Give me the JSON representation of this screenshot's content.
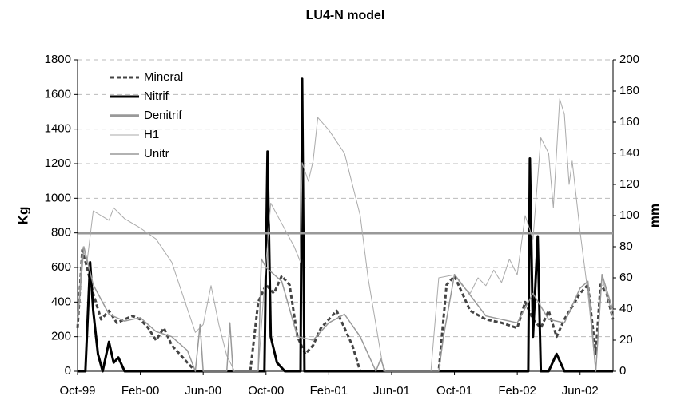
{
  "chart_data": {
    "type": "line",
    "title": "LU4-N model",
    "y_label": "Kg",
    "y2_label": "mm",
    "xlim": [
      0,
      34.1
    ],
    "xticks": [
      {
        "value": 0,
        "label": "Oct-99"
      },
      {
        "value": 4,
        "label": "Feb-00"
      },
      {
        "value": 8,
        "label": "Jun-00"
      },
      {
        "value": 12,
        "label": "Oct-00"
      },
      {
        "value": 16,
        "label": "Feb-01"
      },
      {
        "value": 20,
        "label": "Jun-01"
      },
      {
        "value": 24,
        "label": "Oct-01"
      },
      {
        "value": 28,
        "label": "Feb-02"
      },
      {
        "value": 32,
        "label": "Jun-02"
      }
    ],
    "ylim": [
      0,
      1800
    ],
    "yticks": [
      0,
      200,
      400,
      600,
      800,
      1000,
      1200,
      1400,
      1600,
      1800
    ],
    "y2lim": [
      0,
      200
    ],
    "y2ticks": [
      0,
      20,
      40,
      60,
      80,
      100,
      120,
      140,
      160,
      180,
      200
    ],
    "grid": true,
    "legend": "top-left",
    "series": [
      {
        "name": "Mineral",
        "color": "#444444",
        "dash": "5,3",
        "width": 3,
        "x": [
          0,
          0.3,
          0.6,
          1,
          1.5,
          2,
          2.5,
          3,
          3.5,
          4,
          4.5,
          5,
          5.5,
          6,
          6.5,
          7,
          7.5,
          8,
          11,
          11.5,
          12,
          12.5,
          13,
          13.5,
          14,
          14.5,
          15,
          15.5,
          16,
          16.5,
          17,
          17.5,
          18,
          23,
          23.5,
          24,
          24.5,
          25,
          26,
          27,
          28,
          28.5,
          29,
          29.5,
          30,
          30.5,
          31,
          32,
          32.5,
          33,
          33.3,
          33.7,
          34.1
        ],
        "values": [
          250,
          700,
          600,
          450,
          300,
          350,
          280,
          300,
          320,
          300,
          250,
          180,
          250,
          150,
          100,
          50,
          0,
          0,
          0,
          400,
          500,
          450,
          550,
          500,
          200,
          100,
          150,
          250,
          300,
          350,
          250,
          150,
          0,
          0,
          500,
          550,
          450,
          350,
          300,
          280,
          250,
          400,
          300,
          250,
          350,
          200,
          300,
          450,
          500,
          100,
          500,
          450,
          300
        ]
      },
      {
        "name": "Nitrif",
        "color": "#000000",
        "width": 3,
        "x": [
          0,
          0.5,
          0.8,
          1,
          1.3,
          1.6,
          2,
          2.3,
          2.6,
          3,
          11.9,
          12.1,
          12.3,
          12.7,
          13.2,
          14.2,
          14.3,
          14.45,
          28.7,
          28.8,
          29,
          29.3,
          29.5,
          30,
          30.5,
          31,
          34.1
        ],
        "values": [
          0,
          0,
          630,
          350,
          100,
          0,
          170,
          50,
          80,
          0,
          0,
          1270,
          200,
          50,
          0,
          0,
          1690,
          0,
          0,
          1230,
          200,
          780,
          0,
          0,
          100,
          0,
          0
        ]
      },
      {
        "name": "Denitrif",
        "color": "#999999",
        "width": 3.5,
        "x": [
          0,
          34.1
        ],
        "values": [
          800,
          800
        ]
      },
      {
        "name": "H1",
        "color": "#aaaaaa",
        "width": 1,
        "axis": "y2",
        "x": [
          0,
          0.3,
          0.6,
          1,
          1.5,
          2,
          2.3,
          3,
          4,
          5,
          6,
          7,
          7.5,
          8,
          8.5,
          9,
          9.5,
          10,
          11.5,
          12,
          12.3,
          13,
          13.8,
          14.2,
          14.3,
          14.7,
          15,
          15.3,
          16,
          17,
          18,
          18.5,
          19,
          19.5,
          22.5,
          23,
          24,
          24.5,
          25,
          25.5,
          26,
          26.5,
          27,
          27.5,
          28,
          28.5,
          29,
          29.5,
          30,
          30.3,
          30.7,
          31,
          31.3,
          31.5,
          32,
          32.5,
          32.8,
          33,
          33.4,
          34.1
        ],
        "values": [
          30,
          80,
          70,
          103,
          100,
          97,
          105,
          98,
          92,
          85,
          70,
          40,
          25,
          30,
          55,
          30,
          10,
          0,
          0,
          70,
          108,
          95,
          80,
          70,
          134,
          122,
          135,
          163,
          155,
          140,
          100,
          60,
          30,
          0,
          0,
          60,
          62,
          55,
          50,
          60,
          55,
          65,
          57,
          72,
          62,
          100,
          85,
          150,
          140,
          105,
          175,
          165,
          120,
          135,
          90,
          50,
          20,
          0,
          60,
          35
        ]
      },
      {
        "name": "Unitr",
        "color": "#999999",
        "width": 1.5,
        "x": [
          0,
          0.4,
          1,
          2,
          3,
          4,
          5,
          6,
          7,
          7.5,
          7.8,
          8,
          9.5,
          9.7,
          9.9,
          11.5,
          11.7,
          12,
          13,
          14,
          15,
          16,
          17,
          18,
          18.5,
          19,
          19.3,
          19.6,
          23,
          23.3,
          24,
          26,
          28,
          29,
          30,
          31,
          32,
          32.5,
          33,
          33.4,
          34.1
        ],
        "values": [
          280,
          720,
          500,
          330,
          290,
          310,
          230,
          200,
          120,
          0,
          270,
          0,
          0,
          280,
          0,
          0,
          650,
          600,
          520,
          200,
          180,
          280,
          330,
          200,
          100,
          0,
          70,
          0,
          0,
          200,
          560,
          320,
          280,
          450,
          300,
          280,
          480,
          520,
          0,
          560,
          350
        ]
      }
    ]
  }
}
